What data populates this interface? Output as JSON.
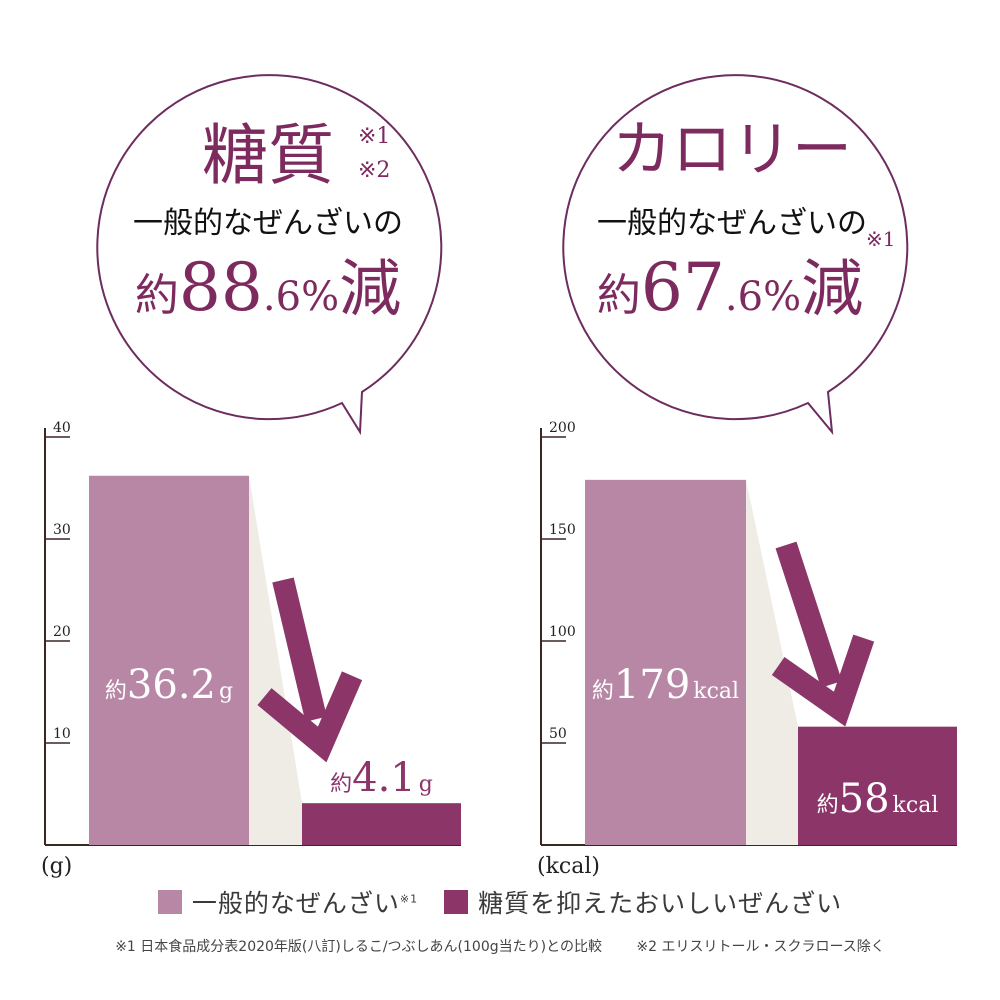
{
  "colors": {
    "general": "#b887a6",
    "reduced": "#8b3569",
    "accent_text": "#7d2a5f",
    "bubble_stroke": "#6d2c5f",
    "connector": "#efece5",
    "axis": "#3b2626"
  },
  "bubbles": [
    {
      "title": "糖質",
      "title_note_1": "※1",
      "title_note_2": "※2",
      "subtitle": "一般的なぜんざいの",
      "prefix": "約",
      "value_int": "88",
      "value_dec": ".6",
      "percent": "%",
      "suffix": "減",
      "sub_note": ""
    },
    {
      "title": "カロリー",
      "title_note_1": "",
      "title_note_2": "",
      "subtitle": "一般的なぜんざいの",
      "prefix": "約",
      "value_int": "67",
      "value_dec": ".6",
      "percent": "%",
      "suffix": "減",
      "sub_note": "※1"
    }
  ],
  "chart_data": [
    {
      "type": "bar",
      "unit_label": "(g)",
      "ylim": [
        0,
        40
      ],
      "yticks": [
        10,
        20,
        30,
        40
      ],
      "categories": [
        "一般的なぜんざい",
        "糖質を抑えたおいしいぜんざい"
      ],
      "values": [
        36.2,
        4.1
      ],
      "data_labels": [
        {
          "prefix": "約",
          "value": "36.2",
          "unit": "g"
        },
        {
          "prefix": "約",
          "value": "4.1",
          "unit": "g"
        }
      ]
    },
    {
      "type": "bar",
      "unit_label": "(kcal)",
      "ylim": [
        0,
        200
      ],
      "yticks": [
        50,
        100,
        150,
        200
      ],
      "categories": [
        "一般的なぜんざい",
        "糖質を抑えたおいしいぜんざい"
      ],
      "values": [
        179,
        58
      ],
      "data_labels": [
        {
          "prefix": "約",
          "value": "179",
          "unit": "kcal"
        },
        {
          "prefix": "約",
          "value": "58",
          "unit": "kcal"
        }
      ]
    }
  ],
  "legend": {
    "general_label": "一般的なぜんざい",
    "general_note": "※1",
    "reduced_label": "糖質を抑えたおいしいぜんざい"
  },
  "footnotes": {
    "note1": "※1 日本食品成分表2020年版(八訂)しるこ/つぶしあん(100g当たり)との比較",
    "note2": "※2 エリスリトール・スクラロース除く"
  }
}
